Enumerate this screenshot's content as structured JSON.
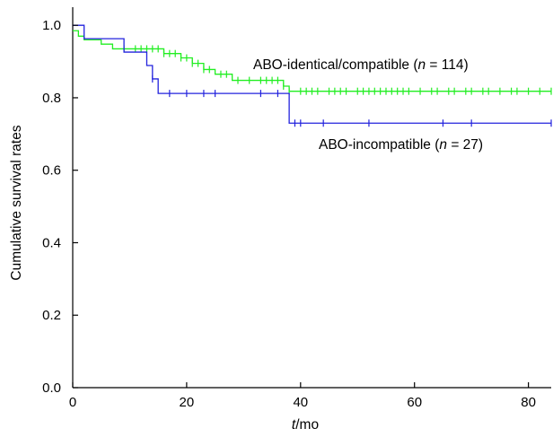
{
  "chart_data": {
    "type": "line",
    "step": true,
    "xlabel_var": "t",
    "xlabel_unit": "/mo",
    "ylabel": "Cumulative survival rates",
    "xlim": [
      0,
      84
    ],
    "ylim": [
      0,
      1.05
    ],
    "x_ticks": [
      0,
      20,
      40,
      60,
      80
    ],
    "x_tick_labels": [
      "0",
      "20",
      "40",
      "60",
      "80"
    ],
    "y_ticks": [
      0,
      0.2,
      0.4,
      0.6,
      0.8,
      1.0
    ],
    "y_tick_labels": [
      "0.0",
      "0.2",
      "0.4",
      "0.6",
      "0.8",
      "1.0"
    ],
    "grid": false,
    "series": [
      {
        "label_prefix": "ABO-identical/compatible (",
        "label_var": "n",
        "label_suffix": " = 114)",
        "color": "#22ee22",
        "steps": [
          [
            0,
            0.985
          ],
          [
            1,
            0.97
          ],
          [
            2,
            0.96
          ],
          [
            5,
            0.948
          ],
          [
            7,
            0.935
          ],
          [
            16,
            0.922
          ],
          [
            19,
            0.91
          ],
          [
            21,
            0.895
          ],
          [
            23,
            0.878
          ],
          [
            25,
            0.865
          ],
          [
            28,
            0.848
          ],
          [
            37,
            0.832
          ],
          [
            38,
            0.818
          ],
          [
            84,
            0.818
          ]
        ],
        "censor_x": [
          9,
          11,
          12,
          13,
          14,
          15,
          16,
          17,
          18,
          19,
          20,
          21,
          22,
          23,
          24,
          26,
          27,
          29,
          31,
          33,
          34,
          35,
          36,
          37,
          38,
          40,
          41,
          42,
          43,
          45,
          46,
          47,
          48,
          50,
          51,
          52,
          53,
          54,
          55,
          56,
          57,
          58,
          59,
          61,
          63,
          64,
          66,
          67,
          69,
          70,
          72,
          73,
          75,
          77,
          78,
          80,
          82,
          84
        ]
      },
      {
        "label_prefix": "ABO-incompatible (",
        "label_var": "n",
        "label_suffix": " = 27)",
        "color": "#2222dd",
        "steps": [
          [
            0,
            1.0
          ],
          [
            2,
            0.963
          ],
          [
            9,
            0.926
          ],
          [
            13,
            0.889
          ],
          [
            14,
            0.852
          ],
          [
            15,
            0.812
          ],
          [
            38,
            0.73
          ],
          [
            84,
            0.73
          ]
        ],
        "censor_x": [
          14,
          17,
          20,
          23,
          25,
          33,
          36,
          39,
          40,
          44,
          52,
          65,
          70,
          84
        ]
      }
    ]
  }
}
